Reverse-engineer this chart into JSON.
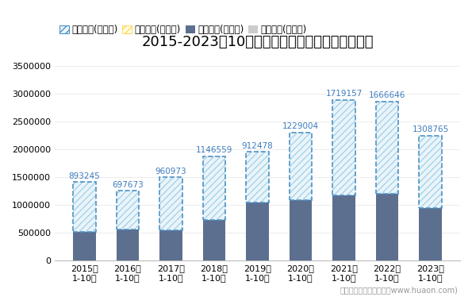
{
  "title": "2015-2023年10月重庆西永综合保税区进出口差额",
  "categories": [
    "2015年\n1-10月",
    "2016年\n1-10月",
    "2017年\n1-10月",
    "2018年\n1-10月",
    "2019年\n1-10月",
    "2020年\n1-10月",
    "2021年\n1-10月",
    "2022年\n1-10月",
    "2023年\n1-10月"
  ],
  "imports": [
    520000,
    560000,
    540000,
    730000,
    1040000,
    1080000,
    1175000,
    1200000,
    940000
  ],
  "exports": [
    1413245,
    1257673,
    1500973,
    1876559,
    1952478,
    2309004,
    2894157,
    2866646,
    2248765
  ],
  "balance": [
    893245,
    697673,
    960973,
    1146559,
    912478,
    1229004,
    1719157,
    1666646,
    1308765
  ],
  "surplus_flag": [
    true,
    true,
    true,
    true,
    true,
    true,
    true,
    true,
    true
  ],
  "legend_labels": [
    "贸易顺差(万美元)",
    "贸易逆差(万美元)",
    "进口总额(万美元)",
    "出口总额(万美元)"
  ],
  "import_color": "#5C6F8F",
  "export_color": "#CCCCCC",
  "surplus_hatch_color": "#A8D4E6",
  "deficit_hatch_color": "#FFD966",
  "surplus_border_color": "#4E92C4",
  "deficit_border_color": "#FFD966",
  "balance_text_color": "#3D7BBF",
  "ylim": [
    0,
    3700000
  ],
  "yticks": [
    0,
    500000,
    1000000,
    1500000,
    2000000,
    2500000,
    3000000,
    3500000
  ],
  "footer": "制图：华经产业研究院（www.huaon.com)",
  "title_fontsize": 13,
  "tick_fontsize": 8,
  "legend_fontsize": 8.5,
  "annotation_fontsize": 7.5
}
